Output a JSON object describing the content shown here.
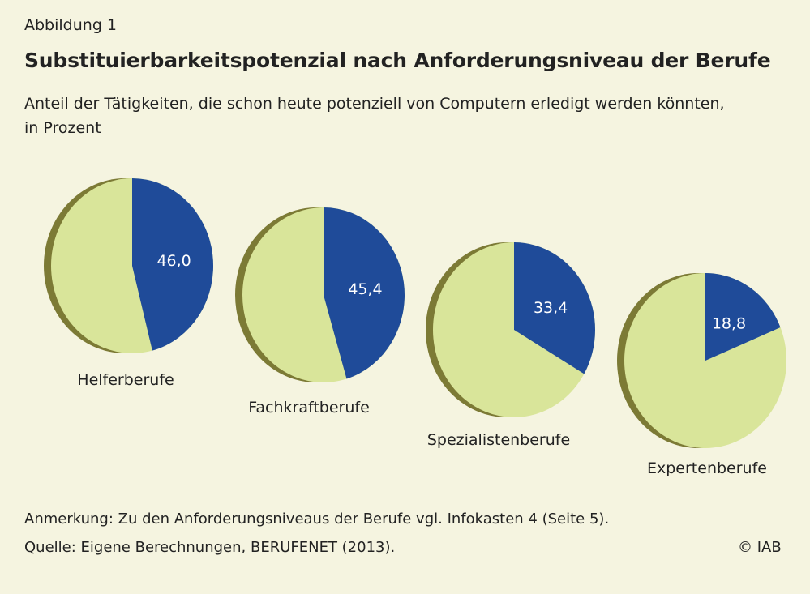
{
  "header": {
    "label": "Abbildung 1",
    "title": "Substituierbarkeitspotenzial nach Anforderungsniveau der Berufe",
    "subtitle_line1": "Anteil der Tätigkeiten, die schon heute potenziell von Computern erledigt werden könnten,",
    "subtitle_line2": "in Prozent"
  },
  "chart_data": {
    "type": "pie",
    "unit": "Prozent",
    "categories": [
      "Helferberufe",
      "Fachkraftberufe",
      "Spezialistenberufe",
      "Expertenberufe"
    ],
    "values": [
      46.0,
      45.4,
      33.4,
      18.8
    ],
    "value_labels": [
      "46,0",
      "45,4",
      "33,4",
      "18,8"
    ],
    "colors": {
      "substituierbar": "#1f4b99",
      "rest": "#d9e59a",
      "edge": "#7c7a35"
    }
  },
  "footer": {
    "note": "Anmerkung: Zu den Anforderungsniveaus der Berufe vgl. Infokasten 4 (Seite 5).",
    "source": "Quelle: Eigene Berechnungen, BERUFENET (2013).",
    "copyright": "© IAB"
  }
}
